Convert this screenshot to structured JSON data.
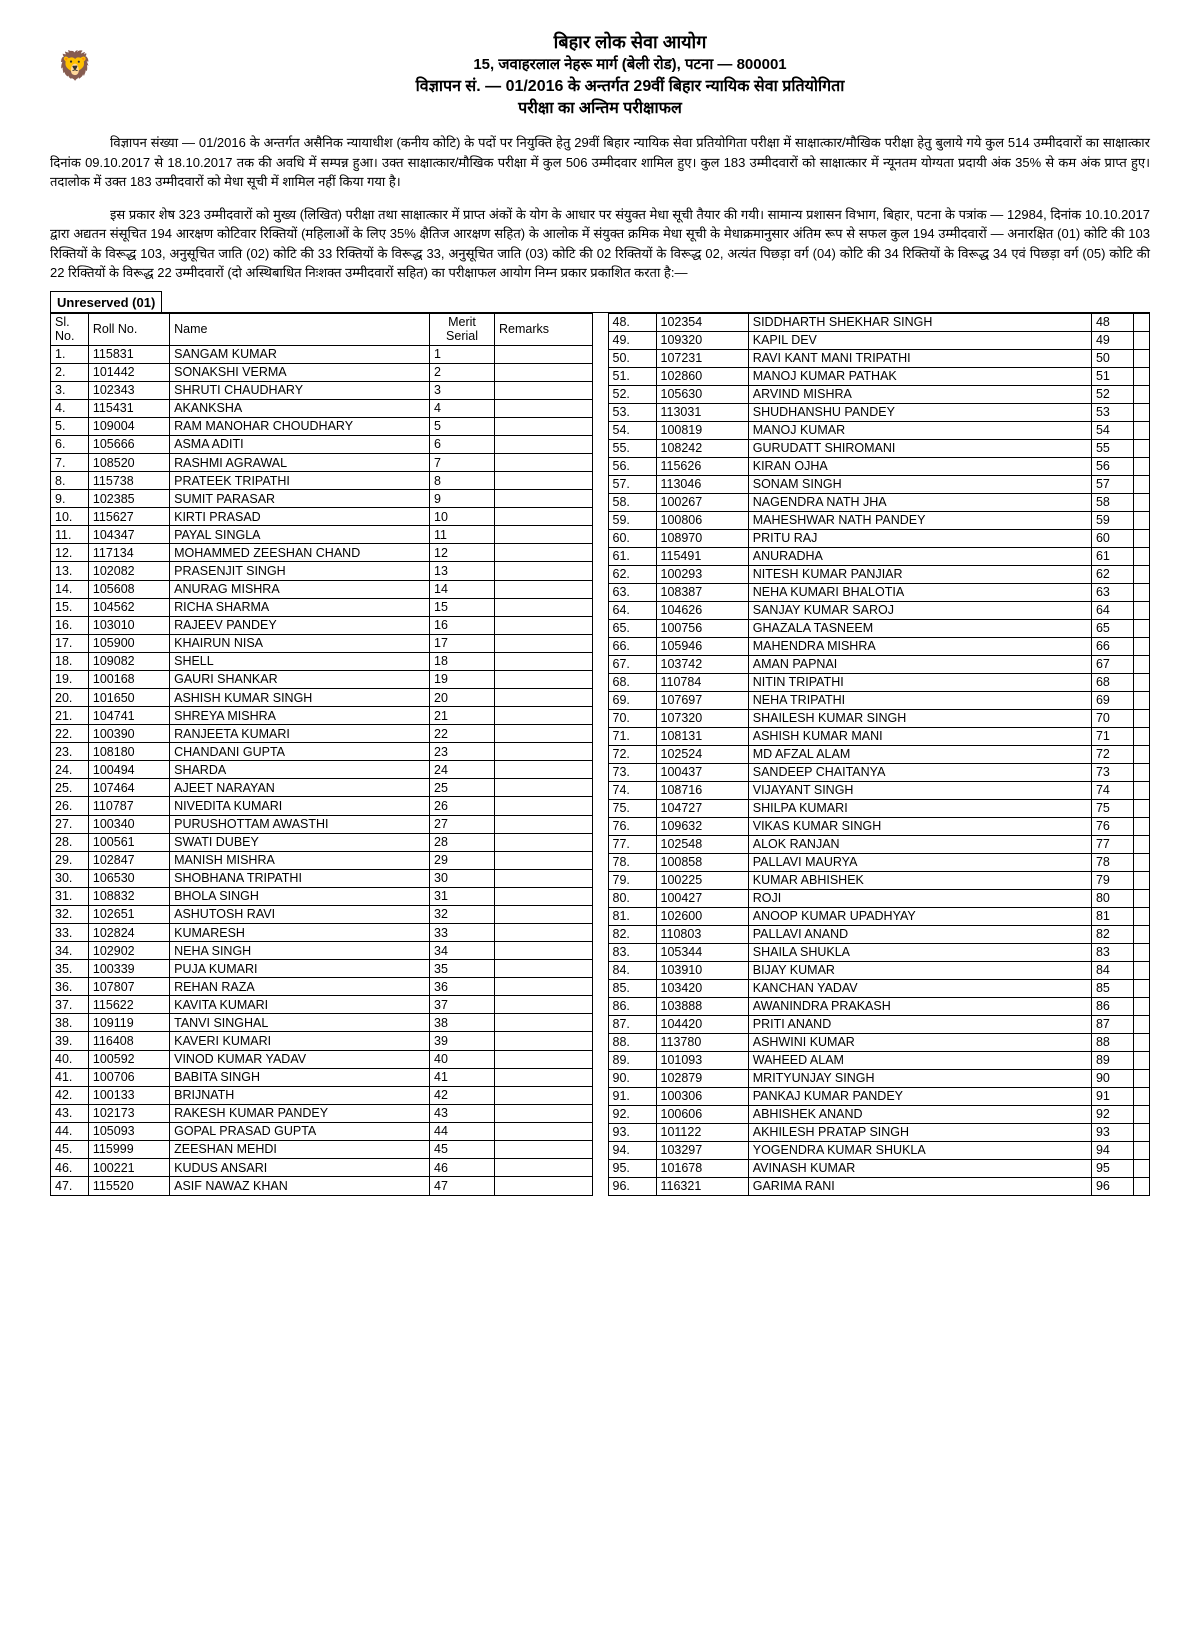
{
  "header": {
    "line1": "बिहार लोक सेवा आयोग",
    "line2": "15, जवाहरलाल नेहरू मार्ग (बेली रोड), पटना — 800001",
    "line3": "विज्ञापन सं. — 01/2016 के अन्तर्गत 29वीं बिहार न्यायिक सेवा प्रतियोगिता",
    "line4": "परीक्षा का अन्तिम परीक्षाफल"
  },
  "para1": "विज्ञापन संख्या — 01/2016 के अन्तर्गत असैनिक न्यायाधीश (कनीय कोटि) के पदों पर नियुक्ति हेतु 29वीं बिहार न्यायिक सेवा प्रतियोगिता परीक्षा में साक्षात्कार/मौखिक परीक्षा हेतु बुलाये गये कुल 514 उम्मीदवारों का साक्षात्कार दिनांक 09.10.2017 से 18.10.2017 तक की अवधि में सम्पन्न हुआ। उक्त साक्षात्कार/मौखिक परीक्षा में कुल 506 उम्मीदवार शामिल हुए। कुल 183 उम्मीदवारों को साक्षात्कार में न्यूनतम योग्यता प्रदायी अंक 35% से कम अंक प्राप्त हुए। तदालोक में उक्त 183 उम्मीदवारों को मेधा सूची में शामिल नहीं किया गया है।",
  "para2": "इस प्रकार शेष 323 उम्मीदवारों को मुख्य (लिखित) परीक्षा तथा साक्षात्कार में प्राप्त अंकों के योग के आधार पर संयुक्त मेधा सूची तैयार की गयी। सामान्य प्रशासन विभाग, बिहार, पटना के पत्रांक — 12984, दिनांक 10.10.2017 द्वारा अद्यतन संसूचित 194 आरक्षण कोटिवार रिक्तियों (महिलाओं के लिए 35% क्षैतिज आरक्षण सहित) के आलोक में संयुक्त क्रमिक मेधा सूची के मेधाक्रमानुसार अंतिम रूप से सफल कुल 194 उम्मीदवारों — अनारक्षित (01) कोटि की 103 रिक्तियों के विरूद्ध 103, अनुसूचित जाति (02) कोटि की 33 रिक्तियों के विरूद्ध 33, अनुसूचित जाति (03) कोटि की 02 रिक्तियों के विरूद्ध 02, अत्यंत पिछड़ा वर्ग (04) कोटि की 34 रिक्तियों के विरूद्ध 34 एवं पिछड़ा वर्ग (05) कोटि की 22 रिक्तियों के विरूद्ध 22 उम्मीदवारों (दो अस्थिबाधित निःशक्त उम्मीदवारों सहित) का परीक्षाफल आयोग निम्न प्रकार प्रकाशित करता है:—",
  "section_title": "Unreserved (01)",
  "columns": {
    "sl": "Sl. No.",
    "roll": "Roll No.",
    "name": "Name",
    "merit": "Merit Serial",
    "remarks": "Remarks"
  },
  "left": [
    {
      "sl": "1.",
      "roll": "115831",
      "name": "SANGAM KUMAR",
      "m": "1",
      "r": ""
    },
    {
      "sl": "2.",
      "roll": "101442",
      "name": "SONAKSHI VERMA",
      "m": "2",
      "r": ""
    },
    {
      "sl": "3.",
      "roll": "102343",
      "name": "SHRUTI CHAUDHARY",
      "m": "3",
      "r": ""
    },
    {
      "sl": "4.",
      "roll": "115431",
      "name": "AKANKSHA",
      "m": "4",
      "r": ""
    },
    {
      "sl": "5.",
      "roll": "109004",
      "name": "RAM MANOHAR CHOUDHARY",
      "m": "5",
      "r": ""
    },
    {
      "sl": "6.",
      "roll": "105666",
      "name": "ASMA ADITI",
      "m": "6",
      "r": ""
    },
    {
      "sl": "7.",
      "roll": "108520",
      "name": "RASHMI AGRAWAL",
      "m": "7",
      "r": ""
    },
    {
      "sl": "8.",
      "roll": "115738",
      "name": "PRATEEK TRIPATHI",
      "m": "8",
      "r": ""
    },
    {
      "sl": "9.",
      "roll": "102385",
      "name": "SUMIT PARASAR",
      "m": "9",
      "r": ""
    },
    {
      "sl": "10.",
      "roll": "115627",
      "name": "KIRTI PRASAD",
      "m": "10",
      "r": ""
    },
    {
      "sl": "11.",
      "roll": "104347",
      "name": "PAYAL SINGLA",
      "m": "11",
      "r": ""
    },
    {
      "sl": "12.",
      "roll": "117134",
      "name": "MOHAMMED ZEESHAN CHAND",
      "m": "12",
      "r": ""
    },
    {
      "sl": "13.",
      "roll": "102082",
      "name": "PRASENJIT SINGH",
      "m": "13",
      "r": ""
    },
    {
      "sl": "14.",
      "roll": "105608",
      "name": "ANURAG MISHRA",
      "m": "14",
      "r": ""
    },
    {
      "sl": "15.",
      "roll": "104562",
      "name": "RICHA SHARMA",
      "m": "15",
      "r": ""
    },
    {
      "sl": "16.",
      "roll": "103010",
      "name": "RAJEEV PANDEY",
      "m": "16",
      "r": ""
    },
    {
      "sl": "17.",
      "roll": "105900",
      "name": "KHAIRUN NISA",
      "m": "17",
      "r": ""
    },
    {
      "sl": "18.",
      "roll": "109082",
      "name": "SHELL",
      "m": "18",
      "r": ""
    },
    {
      "sl": "19.",
      "roll": "100168",
      "name": "GAURI SHANKAR",
      "m": "19",
      "r": ""
    },
    {
      "sl": "20.",
      "roll": "101650",
      "name": "ASHISH KUMAR SINGH",
      "m": "20",
      "r": ""
    },
    {
      "sl": "21.",
      "roll": "104741",
      "name": "SHREYA MISHRA",
      "m": "21",
      "r": ""
    },
    {
      "sl": "22.",
      "roll": "100390",
      "name": "RANJEETA KUMARI",
      "m": "22",
      "r": ""
    },
    {
      "sl": "23.",
      "roll": "108180",
      "name": "CHANDANI GUPTA",
      "m": "23",
      "r": ""
    },
    {
      "sl": "24.",
      "roll": "100494",
      "name": "SHARDA",
      "m": "24",
      "r": ""
    },
    {
      "sl": "25.",
      "roll": "107464",
      "name": "AJEET NARAYAN",
      "m": "25",
      "r": ""
    },
    {
      "sl": "26.",
      "roll": "110787",
      "name": "NIVEDITA KUMARI",
      "m": "26",
      "r": ""
    },
    {
      "sl": "27.",
      "roll": "100340",
      "name": "PURUSHOTTAM AWASTHI",
      "m": "27",
      "r": ""
    },
    {
      "sl": "28.",
      "roll": "100561",
      "name": "SWATI DUBEY",
      "m": "28",
      "r": ""
    },
    {
      "sl": "29.",
      "roll": "102847",
      "name": "MANISH MISHRA",
      "m": "29",
      "r": ""
    },
    {
      "sl": "30.",
      "roll": "106530",
      "name": "SHOBHANA TRIPATHI",
      "m": "30",
      "r": ""
    },
    {
      "sl": "31.",
      "roll": "108832",
      "name": "BHOLA SINGH",
      "m": "31",
      "r": ""
    },
    {
      "sl": "32.",
      "roll": "102651",
      "name": "ASHUTOSH RAVI",
      "m": "32",
      "r": ""
    },
    {
      "sl": "33.",
      "roll": "102824",
      "name": "KUMARESH",
      "m": "33",
      "r": ""
    },
    {
      "sl": "34.",
      "roll": "102902",
      "name": "NEHA SINGH",
      "m": "34",
      "r": ""
    },
    {
      "sl": "35.",
      "roll": "100339",
      "name": "PUJA KUMARI",
      "m": "35",
      "r": ""
    },
    {
      "sl": "36.",
      "roll": "107807",
      "name": "REHAN RAZA",
      "m": "36",
      "r": ""
    },
    {
      "sl": "37.",
      "roll": "115622",
      "name": "KAVITA KUMARI",
      "m": "37",
      "r": ""
    },
    {
      "sl": "38.",
      "roll": "109119",
      "name": "TANVI SINGHAL",
      "m": "38",
      "r": ""
    },
    {
      "sl": "39.",
      "roll": "116408",
      "name": "KAVERI KUMARI",
      "m": "39",
      "r": ""
    },
    {
      "sl": "40.",
      "roll": "100592",
      "name": "VINOD KUMAR YADAV",
      "m": "40",
      "r": ""
    },
    {
      "sl": "41.",
      "roll": "100706",
      "name": "BABITA SINGH",
      "m": "41",
      "r": ""
    },
    {
      "sl": "42.",
      "roll": "100133",
      "name": "BRIJNATH",
      "m": "42",
      "r": ""
    },
    {
      "sl": "43.",
      "roll": "102173",
      "name": "RAKESH KUMAR PANDEY",
      "m": "43",
      "r": ""
    },
    {
      "sl": "44.",
      "roll": "105093",
      "name": "GOPAL PRASAD GUPTA",
      "m": "44",
      "r": ""
    },
    {
      "sl": "45.",
      "roll": "115999",
      "name": "ZEESHAN MEHDI",
      "m": "45",
      "r": ""
    },
    {
      "sl": "46.",
      "roll": "100221",
      "name": "KUDUS ANSARI",
      "m": "46",
      "r": ""
    },
    {
      "sl": "47.",
      "roll": "115520",
      "name": "ASIF NAWAZ KHAN",
      "m": "47",
      "r": ""
    }
  ],
  "right": [
    {
      "sl": "48.",
      "roll": "102354",
      "name": "SIDDHARTH SHEKHAR SINGH",
      "m": "48",
      "r": ""
    },
    {
      "sl": "49.",
      "roll": "109320",
      "name": "KAPIL DEV",
      "m": "49",
      "r": ""
    },
    {
      "sl": "50.",
      "roll": "107231",
      "name": "RAVI KANT MANI TRIPATHI",
      "m": "50",
      "r": ""
    },
    {
      "sl": "51.",
      "roll": "102860",
      "name": "MANOJ KUMAR PATHAK",
      "m": "51",
      "r": ""
    },
    {
      "sl": "52.",
      "roll": "105630",
      "name": "ARVIND MISHRA",
      "m": "52",
      "r": ""
    },
    {
      "sl": "53.",
      "roll": "113031",
      "name": "SHUDHANSHU PANDEY",
      "m": "53",
      "r": ""
    },
    {
      "sl": "54.",
      "roll": "100819",
      "name": "MANOJ KUMAR",
      "m": "54",
      "r": ""
    },
    {
      "sl": "55.",
      "roll": "108242",
      "name": "GURUDATT SHIROMANI",
      "m": "55",
      "r": ""
    },
    {
      "sl": "56.",
      "roll": "115626",
      "name": "KIRAN OJHA",
      "m": "56",
      "r": ""
    },
    {
      "sl": "57.",
      "roll": "113046",
      "name": "SONAM SINGH",
      "m": "57",
      "r": ""
    },
    {
      "sl": "58.",
      "roll": "100267",
      "name": "NAGENDRA NATH JHA",
      "m": "58",
      "r": ""
    },
    {
      "sl": "59.",
      "roll": "100806",
      "name": "MAHESHWAR NATH PANDEY",
      "m": "59",
      "r": ""
    },
    {
      "sl": "60.",
      "roll": "108970",
      "name": "PRITU RAJ",
      "m": "60",
      "r": ""
    },
    {
      "sl": "61.",
      "roll": "115491",
      "name": "ANURADHA",
      "m": "61",
      "r": ""
    },
    {
      "sl": "62.",
      "roll": "100293",
      "name": "NITESH KUMAR PANJIAR",
      "m": "62",
      "r": ""
    },
    {
      "sl": "63.",
      "roll": "108387",
      "name": "NEHA KUMARI BHALOTIA",
      "m": "63",
      "r": ""
    },
    {
      "sl": "64.",
      "roll": "104626",
      "name": "SANJAY KUMAR SAROJ",
      "m": "64",
      "r": ""
    },
    {
      "sl": "65.",
      "roll": "100756",
      "name": "GHAZALA TASNEEM",
      "m": "65",
      "r": ""
    },
    {
      "sl": "66.",
      "roll": "105946",
      "name": "MAHENDRA MISHRA",
      "m": "66",
      "r": ""
    },
    {
      "sl": "67.",
      "roll": "103742",
      "name": "AMAN PAPNAI",
      "m": "67",
      "r": ""
    },
    {
      "sl": "68.",
      "roll": "110784",
      "name": "NITIN TRIPATHI",
      "m": "68",
      "r": ""
    },
    {
      "sl": "69.",
      "roll": "107697",
      "name": "NEHA TRIPATHI",
      "m": "69",
      "r": ""
    },
    {
      "sl": "70.",
      "roll": "107320",
      "name": "SHAILESH KUMAR SINGH",
      "m": "70",
      "r": ""
    },
    {
      "sl": "71.",
      "roll": "108131",
      "name": "ASHISH KUMAR MANI",
      "m": "71",
      "r": ""
    },
    {
      "sl": "72.",
      "roll": "102524",
      "name": "MD AFZAL ALAM",
      "m": "72",
      "r": ""
    },
    {
      "sl": "73.",
      "roll": "100437",
      "name": "SANDEEP CHAITANYA",
      "m": "73",
      "r": ""
    },
    {
      "sl": "74.",
      "roll": "108716",
      "name": "VIJAYANT SINGH",
      "m": "74",
      "r": ""
    },
    {
      "sl": "75.",
      "roll": "104727",
      "name": "SHILPA KUMARI",
      "m": "75",
      "r": ""
    },
    {
      "sl": "76.",
      "roll": "109632",
      "name": "VIKAS KUMAR SINGH",
      "m": "76",
      "r": ""
    },
    {
      "sl": "77.",
      "roll": "102548",
      "name": "ALOK RANJAN",
      "m": "77",
      "r": ""
    },
    {
      "sl": "78.",
      "roll": "100858",
      "name": "PALLAVI MAURYA",
      "m": "78",
      "r": ""
    },
    {
      "sl": "79.",
      "roll": "100225",
      "name": "KUMAR ABHISHEK",
      "m": "79",
      "r": ""
    },
    {
      "sl": "80.",
      "roll": "100427",
      "name": "ROJI",
      "m": "80",
      "r": ""
    },
    {
      "sl": "81.",
      "roll": "102600",
      "name": "ANOOP KUMAR UPADHYAY",
      "m": "81",
      "r": ""
    },
    {
      "sl": "82.",
      "roll": "110803",
      "name": "PALLAVI ANAND",
      "m": "82",
      "r": ""
    },
    {
      "sl": "83.",
      "roll": "105344",
      "name": "SHAILA SHUKLA",
      "m": "83",
      "r": ""
    },
    {
      "sl": "84.",
      "roll": "103910",
      "name": "BIJAY KUMAR",
      "m": "84",
      "r": ""
    },
    {
      "sl": "85.",
      "roll": "103420",
      "name": "KANCHAN YADAV",
      "m": "85",
      "r": ""
    },
    {
      "sl": "86.",
      "roll": "103888",
      "name": "AWANINDRA PRAKASH",
      "m": "86",
      "r": ""
    },
    {
      "sl": "87.",
      "roll": "104420",
      "name": "PRITI ANAND",
      "m": "87",
      "r": ""
    },
    {
      "sl": "88.",
      "roll": "113780",
      "name": "ASHWINI KUMAR",
      "m": "88",
      "r": ""
    },
    {
      "sl": "89.",
      "roll": "101093",
      "name": "WAHEED ALAM",
      "m": "89",
      "r": ""
    },
    {
      "sl": "90.",
      "roll": "102879",
      "name": "MRITYUNJAY SINGH",
      "m": "90",
      "r": ""
    },
    {
      "sl": "91.",
      "roll": "100306",
      "name": "PANKAJ KUMAR PANDEY",
      "m": "91",
      "r": ""
    },
    {
      "sl": "92.",
      "roll": "100606",
      "name": "ABHISHEK ANAND",
      "m": "92",
      "r": ""
    },
    {
      "sl": "93.",
      "roll": "101122",
      "name": "AKHILESH PRATAP SINGH",
      "m": "93",
      "r": ""
    },
    {
      "sl": "94.",
      "roll": "103297",
      "name": "YOGENDRA KUMAR SHUKLA",
      "m": "94",
      "r": ""
    },
    {
      "sl": "95.",
      "roll": "101678",
      "name": "AVINASH KUMAR",
      "m": "95",
      "r": ""
    },
    {
      "sl": "96.",
      "roll": "116321",
      "name": "GARIMA RANI",
      "m": "96",
      "r": ""
    }
  ]
}
